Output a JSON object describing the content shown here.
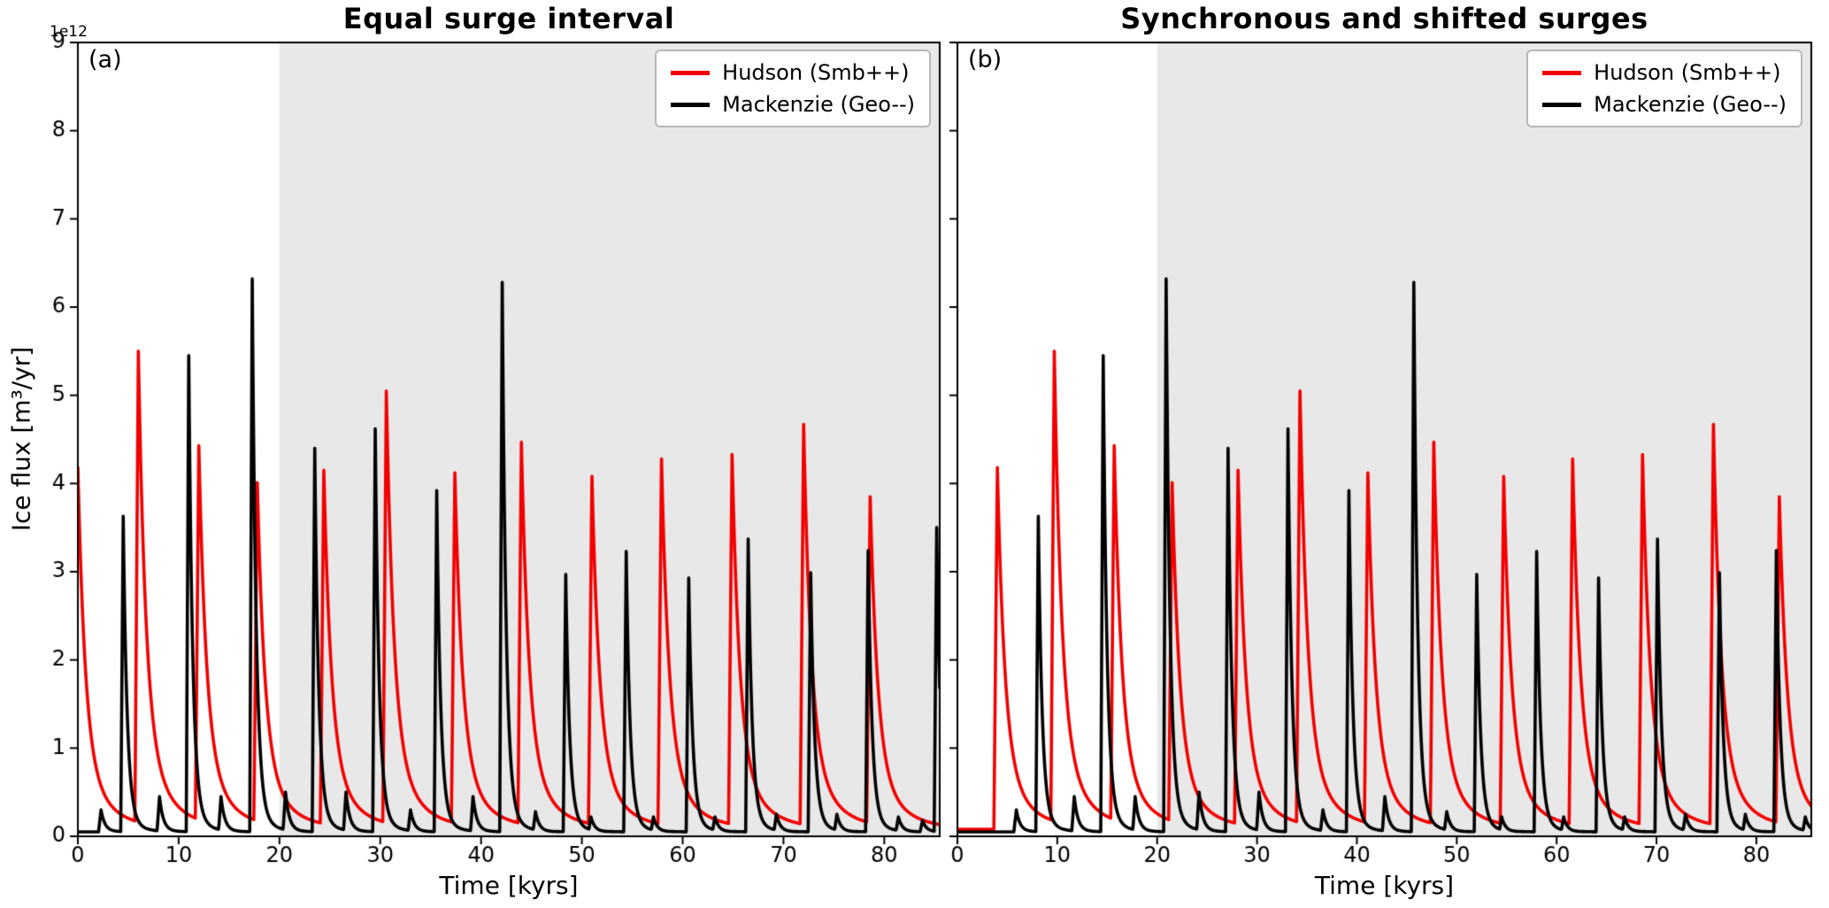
{
  "figure": {
    "background": "#ffffff",
    "shaded_color": "#e8e8e8",
    "hudson_color": "#f20000",
    "mackenzie_color": "#000000"
  },
  "chart_data": [
    {
      "type": "line",
      "panel_label": "(a)",
      "title": "Equal surge interval",
      "xlabel": "Time [kyrs]",
      "ylabel": "Ice flux [m³/yr]",
      "y_offset_text": "1e12",
      "xlim": [
        0,
        85.5
      ],
      "ylim": [
        0,
        9
      ],
      "xticks": [
        0,
        10,
        20,
        30,
        40,
        50,
        60,
        70,
        80
      ],
      "yticks": [
        0,
        1,
        2,
        3,
        4,
        5,
        6,
        7,
        8,
        9
      ],
      "grid": false,
      "shaded_region": {
        "x_start": 20,
        "x_end": 85.5,
        "color": "#e8e8e8"
      },
      "legend": {
        "position": "upper right",
        "entries": [
          {
            "label": "Hudson (Smb++)",
            "color": "#f20000"
          },
          {
            "label": "Mackenzie (Geo--)",
            "color": "#000000"
          }
        ]
      },
      "series": [
        {
          "name": "Hudson (Smb++)",
          "color": "#f20000",
          "baseline": 0.08,
          "surge_peaks": [
            [
              0.0,
              4.18
            ],
            [
              6.0,
              5.5
            ],
            [
              12.0,
              4.43
            ],
            [
              17.8,
              4.01
            ],
            [
              24.4,
              4.15
            ],
            [
              30.6,
              5.05
            ],
            [
              37.4,
              4.12
            ],
            [
              44.0,
              4.47
            ],
            [
              51.0,
              4.08
            ],
            [
              57.9,
              4.28
            ],
            [
              64.9,
              4.33
            ],
            [
              72.0,
              4.67
            ],
            [
              78.6,
              3.85
            ]
          ]
        },
        {
          "name": "Mackenzie (Geo--)",
          "color": "#000000",
          "baseline": 0.05,
          "surge_peaks": [
            [
              4.5,
              3.63
            ],
            [
              11.0,
              5.45
            ],
            [
              17.3,
              6.32
            ],
            [
              23.5,
              4.4
            ],
            [
              29.5,
              4.62
            ],
            [
              35.6,
              3.92
            ],
            [
              42.1,
              6.28
            ],
            [
              48.4,
              2.97
            ],
            [
              54.4,
              3.23
            ],
            [
              60.6,
              2.93
            ],
            [
              66.5,
              3.37
            ],
            [
              72.7,
              2.99
            ],
            [
              78.4,
              3.24
            ],
            [
              85.2,
              3.5
            ]
          ],
          "minor_peaks": [
            [
              2.3,
              0.3
            ],
            [
              8.1,
              0.45
            ],
            [
              14.2,
              0.45
            ],
            [
              20.6,
              0.5
            ],
            [
              26.6,
              0.5
            ],
            [
              33.0,
              0.3
            ],
            [
              39.2,
              0.45
            ],
            [
              45.4,
              0.28
            ],
            [
              50.9,
              0.22
            ],
            [
              57.1,
              0.22
            ],
            [
              63.2,
              0.22
            ],
            [
              69.3,
              0.25
            ],
            [
              75.3,
              0.25
            ],
            [
              81.4,
              0.22
            ],
            [
              83.8,
              0.18
            ]
          ]
        }
      ]
    },
    {
      "type": "line",
      "panel_label": "(b)",
      "title": "Synchronous and shifted surges",
      "xlabel": "Time [kyrs]",
      "ylabel": "Ice flux [m³/yr]",
      "y_offset_text": "1e12",
      "xlim": [
        0,
        85.5
      ],
      "ylim": [
        0,
        9
      ],
      "xticks": [
        0,
        10,
        20,
        30,
        40,
        50,
        60,
        70,
        80
      ],
      "yticks": [
        0,
        1,
        2,
        3,
        4,
        5,
        6,
        7,
        8,
        9
      ],
      "grid": false,
      "shaded_region": {
        "x_start": 20,
        "x_end": 85.5,
        "color": "#e8e8e8"
      },
      "legend": {
        "position": "upper right",
        "entries": [
          {
            "label": "Hudson (Smb++)",
            "color": "#f20000"
          },
          {
            "label": "Mackenzie (Geo--)",
            "color": "#000000"
          }
        ]
      },
      "series": [
        {
          "name": "Hudson (Smb++)",
          "color": "#f20000",
          "baseline": 0.08,
          "surge_peaks": [
            [
              4.0,
              4.18
            ],
            [
              9.7,
              5.5
            ],
            [
              15.7,
              4.43
            ],
            [
              21.5,
              4.01
            ],
            [
              28.1,
              4.15
            ],
            [
              34.3,
              5.05
            ],
            [
              41.1,
              4.12
            ],
            [
              47.7,
              4.47
            ],
            [
              54.7,
              4.08
            ],
            [
              61.6,
              4.28
            ],
            [
              68.6,
              4.33
            ],
            [
              75.7,
              4.67
            ],
            [
              82.3,
              3.85
            ]
          ]
        },
        {
          "name": "Mackenzie (Geo--)",
          "color": "#000000",
          "baseline": 0.05,
          "surge_peaks": [
            [
              8.1,
              3.63
            ],
            [
              14.6,
              5.45
            ],
            [
              20.9,
              6.32
            ],
            [
              27.1,
              4.4
            ],
            [
              33.1,
              4.62
            ],
            [
              39.2,
              3.92
            ],
            [
              45.7,
              6.28
            ],
            [
              52.0,
              2.97
            ],
            [
              58.0,
              3.23
            ],
            [
              64.2,
              2.93
            ],
            [
              70.1,
              3.37
            ],
            [
              76.3,
              2.99
            ],
            [
              82.0,
              3.24
            ]
          ],
          "minor_peaks": [
            [
              5.9,
              0.3
            ],
            [
              11.7,
              0.45
            ],
            [
              17.8,
              0.45
            ],
            [
              24.2,
              0.5
            ],
            [
              30.2,
              0.5
            ],
            [
              36.6,
              0.3
            ],
            [
              42.8,
              0.45
            ],
            [
              49.0,
              0.28
            ],
            [
              54.5,
              0.22
            ],
            [
              60.7,
              0.22
            ],
            [
              66.8,
              0.22
            ],
            [
              72.9,
              0.25
            ],
            [
              78.9,
              0.25
            ],
            [
              84.9,
              0.22
            ]
          ]
        }
      ]
    }
  ]
}
